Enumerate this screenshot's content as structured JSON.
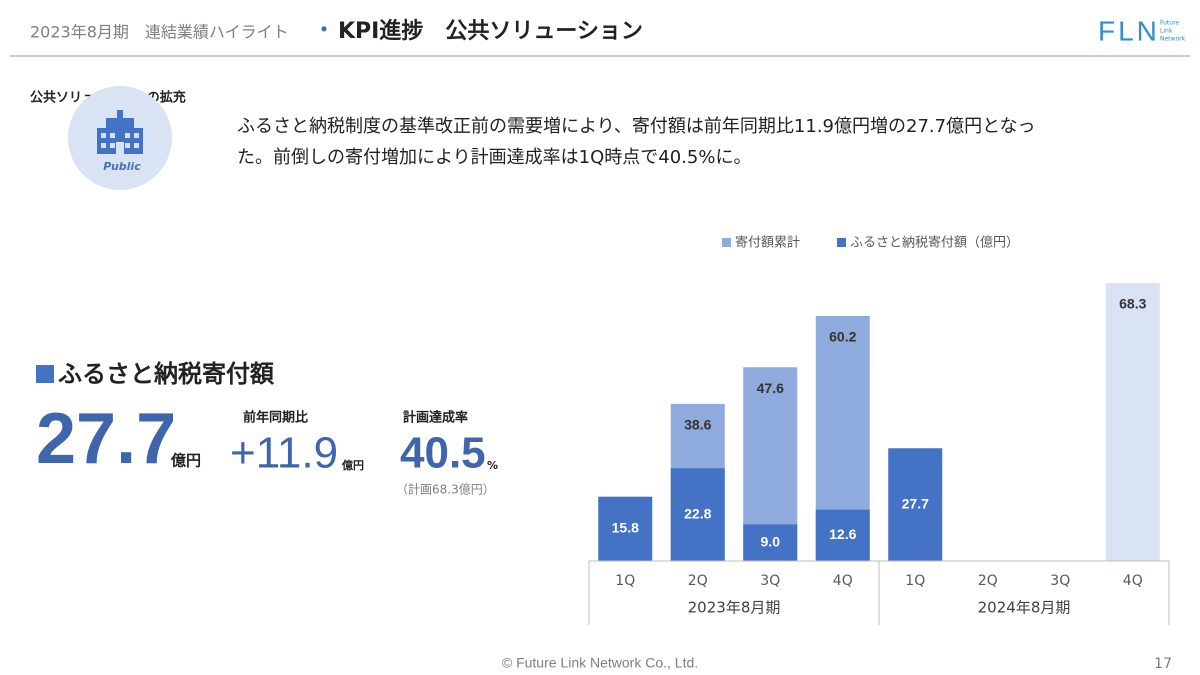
{
  "header": {
    "period": "2023年8月期　連結業績ハイライト",
    "bullet": "・",
    "title": "KPI進捗　公共ソリューション",
    "logo": "FLN",
    "logo_sub": [
      "Future",
      "Link",
      "Network"
    ]
  },
  "section": {
    "label": "公共ソリューションの拡充",
    "icon_label": "Public",
    "text": [
      "ふるさと納税制度の基準改正前の需要増により、寄付額は前年同期比11.9億円増の27.7億円となっ",
      "た。前倒しの寄付増加により計画達成率は1Q時点で40.5%に。"
    ]
  },
  "kpi": {
    "heading": "ふるさと納税寄付額",
    "value": "27.7",
    "unit": "億円",
    "yoy_label": "前年同期比",
    "yoy_value": "+11.9",
    "yoy_unit": "億円",
    "rate_label": "計画達成率",
    "rate_value": "40.5",
    "rate_unit": "%",
    "plan_note": "（計画68.3億円）"
  },
  "footer": {
    "copyright": "© Future Link Network Co., Ltd.",
    "page": "17"
  },
  "chart_data": {
    "type": "bar",
    "categories": [
      "1Q",
      "2Q",
      "3Q",
      "4Q",
      "1Q",
      "2Q",
      "3Q",
      "4Q"
    ],
    "groups": [
      "2023年8月期",
      "2024年8月期"
    ],
    "ylim": [
      0,
      68.3
    ],
    "series": [
      {
        "name": "寄付額累計",
        "color": "#8faadc",
        "colors": [
          null,
          null,
          null,
          null,
          null,
          null,
          null,
          "#dae3f3"
        ],
        "values": [
          null,
          38.6,
          47.6,
          60.2,
          null,
          null,
          null,
          68.3
        ],
        "value_labels": [
          null,
          "38.6",
          "47.6",
          "60.2",
          null,
          null,
          null,
          "68.3"
        ]
      },
      {
        "name": "ふるさと納税寄付額（億円）",
        "color": "#4472c4",
        "values": [
          15.8,
          22.8,
          9,
          12.6,
          27.7,
          null,
          null,
          null
        ],
        "value_labels": [
          "15.8",
          "22.8",
          "9.0",
          "12.6",
          "27.7",
          null,
          null,
          null
        ]
      }
    ]
  }
}
